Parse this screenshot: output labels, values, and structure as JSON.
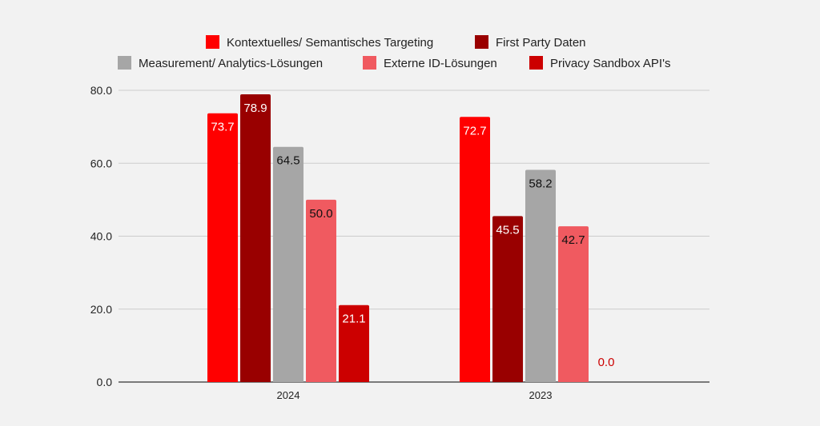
{
  "chart_data": {
    "type": "bar",
    "categories": [
      "2024",
      "2023"
    ],
    "series": [
      {
        "name": "Kontextuelles/ Semantisches Targeting",
        "color": "#ff0000",
        "label_color": "#ffffff",
        "values": [
          73.7,
          72.7
        ],
        "labels": [
          "73.7",
          "72.7"
        ]
      },
      {
        "name": "First Party Daten",
        "color": "#990000",
        "label_color": "#ffffff",
        "values": [
          78.9,
          45.5
        ],
        "labels": [
          "78.9",
          "45.5"
        ]
      },
      {
        "name": "Measurement/ Analytics-Lösungen",
        "color": "#a6a6a6",
        "label_color": "#111111",
        "values": [
          64.5,
          58.2
        ],
        "labels": [
          "64.5",
          "58.2"
        ]
      },
      {
        "name": "Externe ID-Lösungen",
        "color": "#f05a60",
        "label_color": "#111111",
        "values": [
          50.0,
          42.7
        ],
        "labels": [
          "50.0",
          "42.7"
        ]
      },
      {
        "name": "Privacy Sandbox API's",
        "color": "#cc0000",
        "label_color": "#ffffff",
        "values": [
          21.1,
          0.0
        ],
        "labels": [
          "21.1",
          "0.0"
        ]
      }
    ],
    "ylim": [
      0,
      80
    ],
    "yticks": [
      "0.0",
      "20.0",
      "40.0",
      "60.0",
      "80.0"
    ],
    "grid": true,
    "legend_position": "top"
  }
}
